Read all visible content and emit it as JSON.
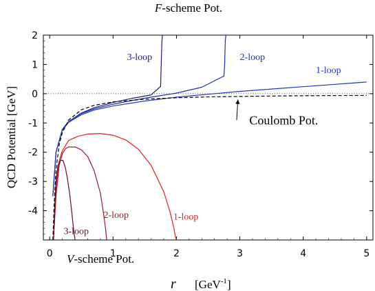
{
  "chart_data": {
    "type": "line",
    "title": "F-scheme Pot.",
    "title_prefix": "F",
    "title_suffix": "-scheme Pot.",
    "bottom_label": "V-scheme Pot.",
    "bottom_label_prefix": "V",
    "bottom_label_suffix": "-scheme Pot.",
    "xlabel": "r",
    "xlabel_unit_prefix": "[GeV",
    "xlabel_unit_sup": "-1",
    "xlabel_unit_suffix": "]",
    "ylabel": "QCD Potential  [GeV]",
    "xlim": [
      -0.1,
      5.1
    ],
    "ylim": [
      -5.0,
      2.0
    ],
    "x_ticks": [
      "0",
      "1",
      "2",
      "3",
      "4",
      "5"
    ],
    "y_ticks": [
      "2",
      "1",
      "0",
      "-1",
      "-2",
      "-3",
      "-4"
    ],
    "zero_line": "dotted",
    "colors": {
      "f_3loop": "#1a1a80",
      "f_2loop": "#1f2fa8",
      "f_1loop": "#2233cc",
      "coulomb": "#000000",
      "v_1loop": "#e02020",
      "v_2loop": "#a01828",
      "v_3loop": "#601020"
    },
    "series": [
      {
        "name": "3-loop",
        "scheme": "F",
        "color_key": "f_3loop",
        "label_pos": [
          1.22,
          1.15
        ],
        "x": [
          0.05,
          0.1,
          0.2,
          0.3,
          0.5,
          0.7,
          1.0,
          1.3,
          1.6,
          1.75,
          1.76,
          1.77,
          1.78
        ],
        "y": [
          -3.5,
          -2.0,
          -1.22,
          -0.95,
          -0.66,
          -0.48,
          -0.3,
          -0.16,
          -0.04,
          0.25,
          1.0,
          1.8,
          2.0
        ]
      },
      {
        "name": "2-loop",
        "scheme": "F",
        "color_key": "f_2loop",
        "label_pos": [
          3.0,
          1.15
        ],
        "x": [
          0.05,
          0.1,
          0.2,
          0.3,
          0.5,
          0.7,
          1.0,
          1.3,
          1.6,
          2.0,
          2.4,
          2.7,
          2.75,
          2.76,
          2.77,
          2.78
        ],
        "y": [
          -3.5,
          -2.0,
          -1.22,
          -0.95,
          -0.68,
          -0.52,
          -0.36,
          -0.23,
          -0.12,
          0.02,
          0.22,
          0.55,
          0.6,
          1.0,
          1.8,
          2.0
        ]
      },
      {
        "name": "1-loop",
        "scheme": "F",
        "color_key": "f_1loop",
        "label_pos": [
          4.2,
          0.7
        ],
        "x": [
          0.05,
          0.1,
          0.2,
          0.3,
          0.5,
          0.7,
          1.0,
          1.5,
          2.0,
          2.5,
          3.0,
          3.5,
          4.0,
          4.5,
          5.0
        ],
        "y": [
          -3.5,
          -2.0,
          -1.25,
          -0.98,
          -0.72,
          -0.56,
          -0.42,
          -0.25,
          -0.12,
          -0.02,
          0.08,
          0.16,
          0.24,
          0.32,
          0.4
        ]
      },
      {
        "name": "Coulomb Pot.",
        "scheme": "coulomb",
        "color_key": "coulomb",
        "dashed": true,
        "label_pos": [
          3.15,
          -1.05
        ],
        "arrow_from": [
          2.95,
          -0.9
        ],
        "arrow_to": [
          2.97,
          -0.2
        ],
        "x": [
          0.05,
          0.07,
          0.1,
          0.15,
          0.2,
          0.3,
          0.5,
          0.7,
          1.0,
          1.5,
          2.0,
          2.5,
          3.0,
          3.5,
          4.0,
          4.5,
          5.0
        ],
        "y": [
          -5.0,
          -3.8,
          -2.6,
          -1.75,
          -1.33,
          -0.9,
          -0.55,
          -0.4,
          -0.28,
          -0.19,
          -0.14,
          -0.11,
          -0.095,
          -0.08,
          -0.07,
          -0.065,
          -0.06
        ]
      },
      {
        "name": "1-loop",
        "scheme": "V",
        "color_key": "v_1loop",
        "label_pos": [
          1.95,
          -4.3
        ],
        "x": [
          0.06,
          0.1,
          0.15,
          0.2,
          0.3,
          0.45,
          0.6,
          0.8,
          1.0,
          1.2,
          1.4,
          1.6,
          1.8,
          1.9,
          1.96,
          1.98,
          2.0
        ],
        "y": [
          -5.0,
          -3.2,
          -2.3,
          -1.95,
          -1.6,
          -1.45,
          -1.38,
          -1.36,
          -1.42,
          -1.58,
          -1.9,
          -2.45,
          -3.35,
          -4.05,
          -4.6,
          -4.85,
          -5.0
        ]
      },
      {
        "name": "2-loop",
        "scheme": "V",
        "color_key": "v_2loop",
        "label_pos": [
          0.85,
          -4.25
        ],
        "x": [
          0.06,
          0.1,
          0.15,
          0.2,
          0.25,
          0.3,
          0.4,
          0.5,
          0.6,
          0.7,
          0.8,
          0.85,
          0.88,
          0.9
        ],
        "y": [
          -5.0,
          -3.5,
          -2.45,
          -2.05,
          -1.88,
          -1.82,
          -1.82,
          -1.92,
          -2.15,
          -2.62,
          -3.4,
          -4.1,
          -4.6,
          -5.0
        ]
      },
      {
        "name": "3-loop",
        "scheme": "V",
        "color_key": "v_3loop",
        "label_pos": [
          0.22,
          -4.8
        ],
        "x": [
          0.06,
          0.08,
          0.1,
          0.13,
          0.17,
          0.21,
          0.25,
          0.28,
          0.32,
          0.35,
          0.38,
          0.4
        ],
        "y": [
          -5.0,
          -3.8,
          -3.0,
          -2.45,
          -2.28,
          -2.28,
          -2.55,
          -2.9,
          -3.5,
          -4.1,
          -4.7,
          -5.0
        ]
      }
    ]
  }
}
